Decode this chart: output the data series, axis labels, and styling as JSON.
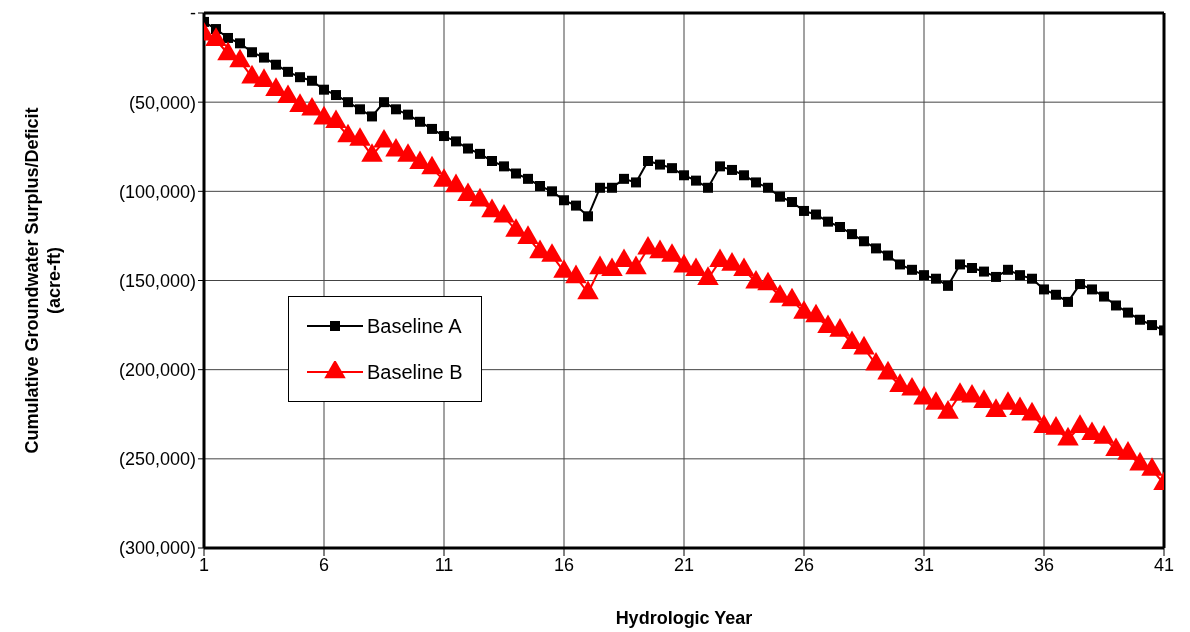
{
  "chart_data": {
    "type": "line",
    "xlabel": "Hydrologic Year",
    "ylabel": "Cumulative Groundwater Surplus/Deficit (acre-ft)",
    "x": [
      1,
      1.5,
      2,
      2.5,
      3,
      3.5,
      4,
      4.5,
      5,
      5.5,
      6,
      6.5,
      7,
      7.5,
      8,
      8.5,
      9,
      9.5,
      10,
      10.5,
      11,
      11.5,
      12,
      12.5,
      13,
      13.5,
      14,
      14.5,
      15,
      15.5,
      16,
      16.5,
      17,
      17.5,
      18,
      18.5,
      19,
      19.5,
      20,
      20.5,
      21,
      21.5,
      22,
      22.5,
      23,
      23.5,
      24,
      24.5,
      25,
      25.5,
      26,
      26.5,
      27,
      27.5,
      28,
      28.5,
      29,
      29.5,
      30,
      30.5,
      31,
      31.5,
      32,
      32.5,
      33,
      33.5,
      34,
      34.5,
      35,
      35.5,
      36,
      36.5,
      37,
      37.5,
      38,
      38.5,
      39,
      39.5,
      40,
      40.5,
      41
    ],
    "series": [
      {
        "name": "Baseline A",
        "color": "#000000",
        "marker": "square",
        "values": [
          -5000,
          -9000,
          -14000,
          -17000,
          -22000,
          -25000,
          -29000,
          -33000,
          -36000,
          -38000,
          -43000,
          -46000,
          -50000,
          -54000,
          -58000,
          -50000,
          -54000,
          -57000,
          -61000,
          -65000,
          -69000,
          -72000,
          -76000,
          -79000,
          -83000,
          -86000,
          -90000,
          -93000,
          -97000,
          -100000,
          -105000,
          -108000,
          -114000,
          -98000,
          -98000,
          -93000,
          -95000,
          -83000,
          -85000,
          -87000,
          -91000,
          -94000,
          -98000,
          -86000,
          -88000,
          -91000,
          -95000,
          -98000,
          -103000,
          -106000,
          -111000,
          -113000,
          -117000,
          -120000,
          -124000,
          -128000,
          -132000,
          -136000,
          -141000,
          -144000,
          -147000,
          -149000,
          -153000,
          -141000,
          -143000,
          -145000,
          -148000,
          -144000,
          -147000,
          -149000,
          -155000,
          -158000,
          -162000,
          -152000,
          -155000,
          -159000,
          -164000,
          -168000,
          -172000,
          -175000,
          -178000
        ]
      },
      {
        "name": "Baseline B",
        "color": "#ff0000",
        "marker": "triangle",
        "values": [
          -12000,
          -15000,
          -23000,
          -27000,
          -36000,
          -38000,
          -43000,
          -47000,
          -52000,
          -54000,
          -59000,
          -61000,
          -69000,
          -71000,
          -80000,
          -72000,
          -77000,
          -80000,
          -84000,
          -87000,
          -94000,
          -97000,
          -102000,
          -105000,
          -111000,
          -114000,
          -122000,
          -126000,
          -134000,
          -136000,
          -145000,
          -148000,
          -157000,
          -143000,
          -144000,
          -139000,
          -143000,
          -132000,
          -134000,
          -136000,
          -142000,
          -144000,
          -149000,
          -139000,
          -141000,
          -144000,
          -151000,
          -152000,
          -159000,
          -161000,
          -168000,
          -170000,
          -176000,
          -178000,
          -185000,
          -188000,
          -197000,
          -202000,
          -209000,
          -211000,
          -216000,
          -219000,
          -224000,
          -214000,
          -215000,
          -218000,
          -223000,
          -219000,
          -222000,
          -225000,
          -232000,
          -233000,
          -239000,
          -232000,
          -236000,
          -238000,
          -245000,
          -247000,
          -253000,
          -256000,
          -264000
        ]
      }
    ],
    "xlim": [
      1,
      41
    ],
    "xticks": [
      1,
      6,
      11,
      16,
      21,
      26,
      31,
      36,
      41
    ],
    "ylim": [
      -300000,
      0
    ],
    "yticks": [
      {
        "value": 0,
        "label": "-"
      },
      {
        "value": -50000,
        "label": "(50,000)"
      },
      {
        "value": -100000,
        "label": "(100,000)"
      },
      {
        "value": -150000,
        "label": "(150,000)"
      },
      {
        "value": -200000,
        "label": "(200,000)"
      },
      {
        "value": -250000,
        "label": "(250,000)"
      },
      {
        "value": -300000,
        "label": "(300,000)"
      }
    ],
    "grid": true,
    "legend": "left",
    "line_style": "solid"
  }
}
